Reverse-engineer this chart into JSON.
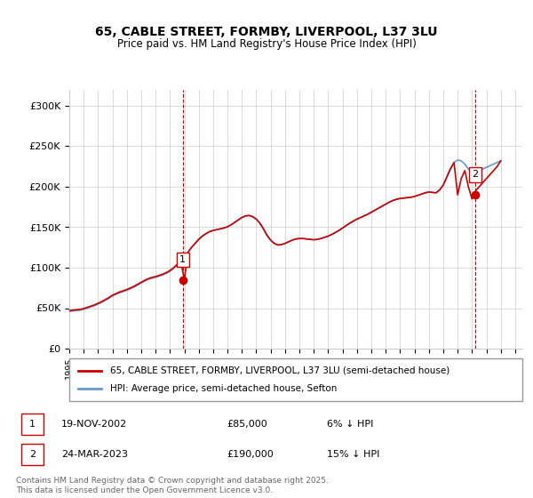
{
  "title_line1": "65, CABLE STREET, FORMBY, LIVERPOOL, L37 3LU",
  "title_line2": "Price paid vs. HM Land Registry's House Price Index (HPI)",
  "ylabel": "",
  "xlim_start": 1995.0,
  "xlim_end": 2026.5,
  "ylim": [
    0,
    320000
  ],
  "yticks": [
    0,
    50000,
    100000,
    150000,
    200000,
    250000,
    300000
  ],
  "ytick_labels": [
    "£0",
    "£50K",
    "£100K",
    "£150K",
    "£200K",
    "£250K",
    "£300K"
  ],
  "xticks": [
    1995,
    1996,
    1997,
    1998,
    1999,
    2000,
    2001,
    2002,
    2003,
    2004,
    2005,
    2006,
    2007,
    2008,
    2009,
    2010,
    2011,
    2012,
    2013,
    2014,
    2015,
    2016,
    2017,
    2018,
    2019,
    2020,
    2021,
    2022,
    2023,
    2024,
    2025,
    2026
  ],
  "sale1_x": 2002.89,
  "sale1_y": 85000,
  "sale1_label": "1",
  "sale2_x": 2023.23,
  "sale2_y": 190000,
  "sale2_label": "2",
  "red_line_color": "#cc0000",
  "blue_line_color": "#6699cc",
  "vline_color": "#cc0000",
  "grid_color": "#cccccc",
  "background_color": "#ffffff",
  "legend_red_label": "65, CABLE STREET, FORMBY, LIVERPOOL, L37 3LU (semi-detached house)",
  "legend_blue_label": "HPI: Average price, semi-detached house, Sefton",
  "table_row1": "1     19-NOV-2002          £85,000          6% ↓ HPI",
  "table_row2": "2     24-MAR-2023          £190,000        15% ↓ HPI",
  "footer": "Contains HM Land Registry data © Crown copyright and database right 2025.\nThis data is licensed under the Open Government Licence v3.0.",
  "hpi_data_x": [
    1995.0,
    1995.25,
    1995.5,
    1995.75,
    1996.0,
    1996.25,
    1996.5,
    1996.75,
    1997.0,
    1997.25,
    1997.5,
    1997.75,
    1998.0,
    1998.25,
    1998.5,
    1998.75,
    1999.0,
    1999.25,
    1999.5,
    1999.75,
    2000.0,
    2000.25,
    2000.5,
    2000.75,
    2001.0,
    2001.25,
    2001.5,
    2001.75,
    2002.0,
    2002.25,
    2002.5,
    2002.75,
    2003.0,
    2003.25,
    2003.5,
    2003.75,
    2004.0,
    2004.25,
    2004.5,
    2004.75,
    2005.0,
    2005.25,
    2005.5,
    2005.75,
    2006.0,
    2006.25,
    2006.5,
    2006.75,
    2007.0,
    2007.25,
    2007.5,
    2007.75,
    2008.0,
    2008.25,
    2008.5,
    2008.75,
    2009.0,
    2009.25,
    2009.5,
    2009.75,
    2010.0,
    2010.25,
    2010.5,
    2010.75,
    2011.0,
    2011.25,
    2011.5,
    2011.75,
    2012.0,
    2012.25,
    2012.5,
    2012.75,
    2013.0,
    2013.25,
    2013.5,
    2013.75,
    2014.0,
    2014.25,
    2014.5,
    2014.75,
    2015.0,
    2015.25,
    2015.5,
    2015.75,
    2016.0,
    2016.25,
    2016.5,
    2016.75,
    2017.0,
    2017.25,
    2017.5,
    2017.75,
    2018.0,
    2018.25,
    2018.5,
    2018.75,
    2019.0,
    2019.25,
    2019.5,
    2019.75,
    2020.0,
    2020.25,
    2020.5,
    2020.75,
    2021.0,
    2021.25,
    2021.5,
    2021.75,
    2022.0,
    2022.25,
    2022.5,
    2022.75,
    2023.0,
    2023.25,
    2023.5,
    2023.75,
    2024.0,
    2024.25,
    2024.5,
    2024.75,
    2025.0
  ],
  "hpi_data_y": [
    46000,
    46500,
    47000,
    47500,
    48500,
    50000,
    51500,
    53000,
    55000,
    57000,
    59500,
    62000,
    65000,
    67000,
    69000,
    70500,
    72000,
    74000,
    76000,
    78500,
    81000,
    83500,
    85500,
    87000,
    88000,
    89500,
    91000,
    93000,
    95500,
    99000,
    103000,
    107500,
    113000,
    119000,
    125000,
    130000,
    135000,
    139000,
    142000,
    144500,
    146000,
    147000,
    148000,
    149000,
    150500,
    153000,
    156000,
    159000,
    162000,
    164000,
    164500,
    163000,
    160000,
    155000,
    148000,
    140000,
    134000,
    130000,
    128000,
    128500,
    130000,
    132000,
    134000,
    135500,
    136000,
    136000,
    135500,
    135000,
    134500,
    135000,
    136000,
    137500,
    139000,
    141000,
    143500,
    146000,
    149000,
    152000,
    155000,
    157500,
    160000,
    162000,
    164000,
    166000,
    168500,
    171000,
    173500,
    176000,
    178500,
    181000,
    183000,
    184500,
    185500,
    186000,
    186500,
    187000,
    188000,
    189500,
    191000,
    192500,
    193500,
    193000,
    192500,
    196000,
    202000,
    212000,
    222000,
    230000,
    233000,
    232000,
    228000,
    222000,
    216000,
    218000,
    220000,
    222000,
    224000,
    226000,
    228000,
    230000,
    232000
  ],
  "red_data_x": [
    1995.0,
    1995.25,
    1995.5,
    1995.75,
    1996.0,
    1996.25,
    1996.5,
    1996.75,
    1997.0,
    1997.25,
    1997.5,
    1997.75,
    1998.0,
    1998.25,
    1998.5,
    1998.75,
    1999.0,
    1999.25,
    1999.5,
    1999.75,
    2000.0,
    2000.25,
    2000.5,
    2000.75,
    2001.0,
    2001.25,
    2001.5,
    2001.75,
    2002.0,
    2002.25,
    2002.5,
    2002.75,
    2003.0,
    2003.25,
    2003.5,
    2003.75,
    2004.0,
    2004.25,
    2004.5,
    2004.75,
    2005.0,
    2005.25,
    2005.5,
    2005.75,
    2006.0,
    2006.25,
    2006.5,
    2006.75,
    2007.0,
    2007.25,
    2007.5,
    2007.75,
    2008.0,
    2008.25,
    2008.5,
    2008.75,
    2009.0,
    2009.25,
    2009.5,
    2009.75,
    2010.0,
    2010.25,
    2010.5,
    2010.75,
    2011.0,
    2011.25,
    2011.5,
    2011.75,
    2012.0,
    2012.25,
    2012.5,
    2012.75,
    2013.0,
    2013.25,
    2013.5,
    2013.75,
    2014.0,
    2014.25,
    2014.5,
    2014.75,
    2015.0,
    2015.25,
    2015.5,
    2015.75,
    2016.0,
    2016.25,
    2016.5,
    2016.75,
    2017.0,
    2017.25,
    2017.5,
    2017.75,
    2018.0,
    2018.25,
    2018.5,
    2018.75,
    2019.0,
    2019.25,
    2019.5,
    2019.75,
    2020.0,
    2020.25,
    2020.5,
    2020.75,
    2021.0,
    2021.25,
    2021.5,
    2021.75,
    2022.0,
    2022.25,
    2022.5,
    2022.75,
    2023.0,
    2023.25,
    2023.5,
    2023.75,
    2024.0,
    2024.25,
    2024.5,
    2024.75,
    2025.0
  ],
  "red_data_y": [
    47000,
    47500,
    48000,
    48500,
    49500,
    51000,
    52500,
    54000,
    56000,
    58000,
    60500,
    63000,
    66000,
    68000,
    70000,
    71500,
    73000,
    75000,
    77000,
    79500,
    82000,
    84500,
    86500,
    88000,
    89000,
    90500,
    92000,
    94000,
    96500,
    100000,
    104000,
    108500,
    85000,
    119000,
    125000,
    130000,
    135000,
    139000,
    142000,
    144500,
    146000,
    147000,
    148000,
    149000,
    150500,
    153000,
    156000,
    159000,
    162000,
    164000,
    164500,
    163000,
    160000,
    155000,
    148000,
    140000,
    134000,
    130000,
    128000,
    128500,
    130000,
    132000,
    134000,
    135500,
    136000,
    136000,
    135500,
    135000,
    134500,
    135000,
    136000,
    137500,
    139000,
    141000,
    143500,
    146000,
    149000,
    152000,
    155000,
    157500,
    160000,
    162000,
    164000,
    166000,
    168500,
    171000,
    173500,
    176000,
    178500,
    181000,
    183000,
    184500,
    185500,
    186000,
    186500,
    187000,
    188000,
    189500,
    191000,
    192500,
    193500,
    193000,
    192500,
    196000,
    202000,
    212000,
    222000,
    230000,
    190000,
    210000,
    220000,
    200000,
    185000,
    195000,
    200000,
    205000,
    210000,
    215000,
    220000,
    225000,
    232000
  ]
}
